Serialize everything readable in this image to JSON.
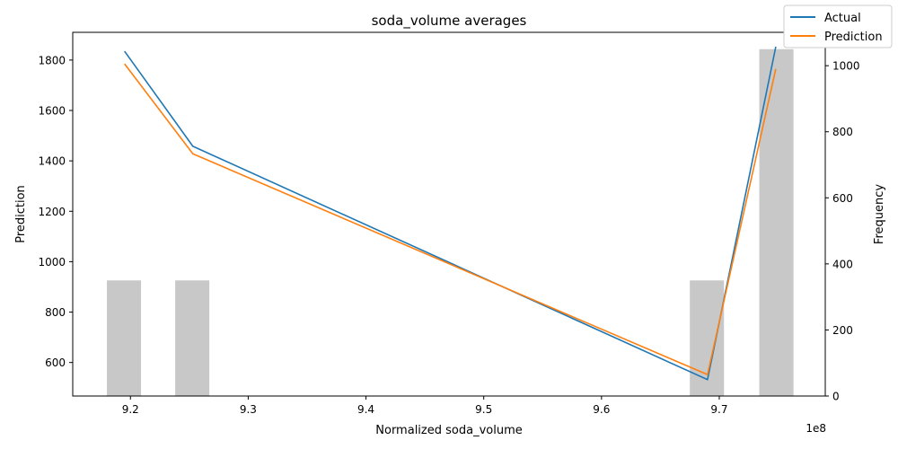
{
  "chart_data": {
    "type": "line",
    "title": "soda_volume averages",
    "xlabel": "Normalized soda_volume",
    "ylabel": "Prediction",
    "y2label": "Frequency",
    "x_offset_label": "1e8",
    "x_ticks": [
      9.2,
      9.3,
      9.4,
      9.5,
      9.6,
      9.7
    ],
    "x_tick_labels": [
      "9.2",
      "9.3",
      "9.4",
      "9.5",
      "9.6",
      "9.7"
    ],
    "xlim": [
      9.151,
      9.79
    ],
    "y_ticks": [
      600,
      800,
      1000,
      1200,
      1400,
      1600,
      1800
    ],
    "y_tick_labels": [
      "600",
      "800",
      "1000",
      "1200",
      "1400",
      "1600",
      "1800"
    ],
    "ylim": [
      467,
      1910
    ],
    "y2_ticks": [
      0,
      200,
      400,
      600,
      800,
      1000
    ],
    "y2_tick_labels": [
      "0",
      "200",
      "400",
      "600",
      "800",
      "1000"
    ],
    "y2lim": [
      0,
      1101
    ],
    "series": [
      {
        "name": "Actual",
        "color": "#1f77b4",
        "x": [
          9.195,
          9.253,
          9.69,
          9.748
        ],
        "y": [
          1835,
          1458,
          532,
          1853
        ]
      },
      {
        "name": "Prediction",
        "color": "#ff7f0e",
        "x": [
          9.195,
          9.253,
          9.69,
          9.748
        ],
        "y": [
          1785,
          1428,
          552,
          1765
        ]
      }
    ],
    "histogram": {
      "color": "#c8c8c8",
      "bins": [
        {
          "x0": 9.18,
          "x1": 9.209,
          "value": 350
        },
        {
          "x0": 9.238,
          "x1": 9.267,
          "value": 350
        },
        {
          "x0": 9.675,
          "x1": 9.704,
          "value": 350
        },
        {
          "x0": 9.734,
          "x1": 9.763,
          "value": 1050
        }
      ]
    },
    "legend": {
      "position": "top-right",
      "entries": [
        "Actual",
        "Prediction"
      ]
    },
    "grid": false
  }
}
